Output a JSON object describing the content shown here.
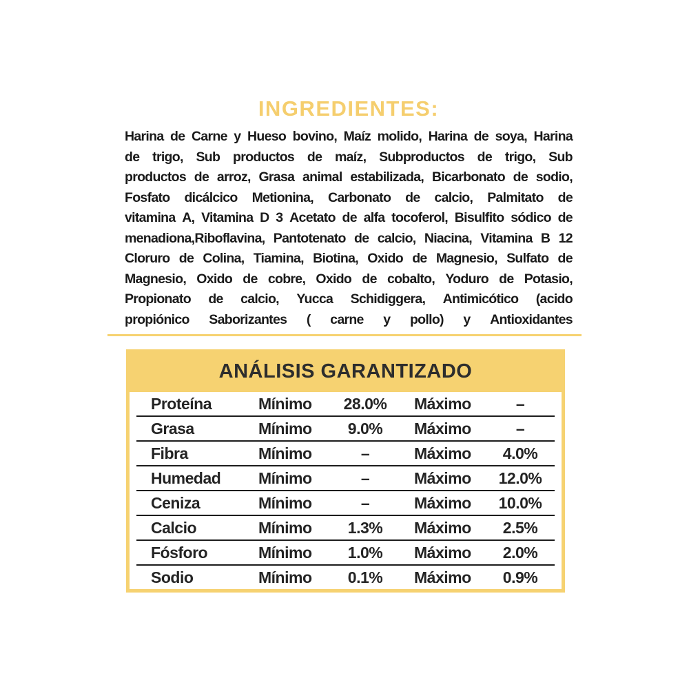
{
  "colors": {
    "accent_yellow": "#F6D271",
    "title_yellow": "#F5CE6E",
    "body_text": "#1a1a1a",
    "table_text": "#242424",
    "analysis_title_text": "#2d2d2d"
  },
  "ingredients": {
    "title": "INGREDIENTES:",
    "lines": [
      "Harina de Carne y Hueso bovino, Maíz molido, Harina de soya, Harina",
      "de trigo, Sub productos de maíz, Subproductos de trigo, Sub",
      "productos de arroz, Grasa animal estabilizada, Bicarbonato de sodio,",
      "Fosfato dicálcico Metionina, Carbonato de calcio, Palmitato de",
      "vitamina A, Vitamina D 3 Acetato de alfa tocoferol, Bisulfito sódico de",
      "menadiona,Riboflavina, Pantotenato de calcio, Niacina, Vitamina B 12",
      "Cloruro de Colina, Tiamina, Biotina, Oxido de Magnesio, Sulfato de",
      "Magnesio, Oxido de cobre, Oxido de cobalto, Yoduro de Potasio,",
      "Propionato de calcio, Yucca Schidiggera, Antimicótico (acido",
      "propiónico Saborizantes ( carne y pollo) y Antioxidantes"
    ]
  },
  "analysis": {
    "title": "ANÁLISIS GARANTIZADO",
    "rows": [
      {
        "nutrient": "Proteína",
        "min_label": "Mínimo",
        "min_value": "28.0%",
        "max_label": "Máximo",
        "max_value": "–"
      },
      {
        "nutrient": "Grasa",
        "min_label": "Mínimo",
        "min_value": "9.0%",
        "max_label": "Máximo",
        "max_value": "–"
      },
      {
        "nutrient": "Fibra",
        "min_label": "Mínimo",
        "min_value": "–",
        "max_label": "Máximo",
        "max_value": "4.0%"
      },
      {
        "nutrient": "Humedad",
        "min_label": "Mínimo",
        "min_value": "–",
        "max_label": "Máximo",
        "max_value": "12.0%"
      },
      {
        "nutrient": "Ceniza",
        "min_label": "Mínimo",
        "min_value": "–",
        "max_label": "Máximo",
        "max_value": "10.0%"
      },
      {
        "nutrient": "Calcio",
        "min_label": "Mínimo",
        "min_value": "1.3%",
        "max_label": "Máximo",
        "max_value": "2.5%"
      },
      {
        "nutrient": "Fósforo",
        "min_label": "Mínimo",
        "min_value": "1.0%",
        "max_label": "Máximo",
        "max_value": "2.0%"
      },
      {
        "nutrient": "Sodio",
        "min_label": "Mínimo",
        "min_value": "0.1%",
        "max_label": "Máximo",
        "max_value": "0.9%"
      }
    ]
  }
}
